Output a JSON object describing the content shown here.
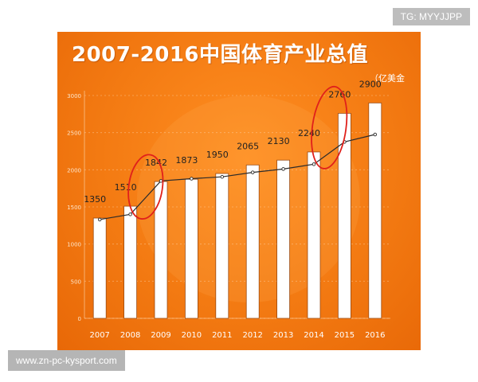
{
  "watermark_top": "TG: MYYJJPP",
  "watermark_bottom": "www.zn-pc-kysport.com",
  "chart_data": {
    "type": "bar",
    "title": "2007-2016中国体育产业总值",
    "unit": "（亿美金",
    "categories": [
      "2007",
      "2008",
      "2009",
      "2010",
      "2011",
      "2012",
      "2013",
      "2014",
      "2015",
      "2016"
    ],
    "values": [
      1350,
      1510,
      1842,
      1873,
      1950,
      2065,
      2130,
      2240,
      2760,
      2900
    ],
    "trend_values": [
      1330,
      1400,
      1850,
      1880,
      1905,
      1965,
      2010,
      2075,
      2375,
      2475
    ],
    "ylim": [
      0,
      3000
    ],
    "yticks": [
      0,
      500,
      1000,
      1500,
      2000,
      2500,
      3000
    ],
    "grid": true,
    "colors": {
      "bar": "#ffffff",
      "bar_stroke": "#9b4a10",
      "trend_line": "#2b2b2b",
      "annotation_circle": "#e0201b",
      "label": "#222222",
      "tick": "#fde6cc"
    },
    "annotations": [
      {
        "shape": "ellipse",
        "around": [
          "2008",
          "2009"
        ]
      },
      {
        "shape": "ellipse",
        "around": [
          "2014",
          "2015"
        ]
      }
    ]
  }
}
